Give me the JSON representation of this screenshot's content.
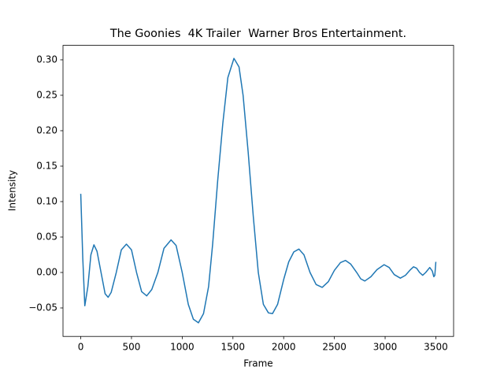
{
  "chart_data": {
    "type": "line",
    "title": "The Goonies  4K Trailer  Warner Bros Entertainment.",
    "x_label": "Frame",
    "y_label": "Intensity",
    "x": [
      0,
      20,
      40,
      70,
      100,
      130,
      160,
      200,
      240,
      270,
      300,
      350,
      400,
      450,
      500,
      550,
      600,
      650,
      700,
      760,
      820,
      890,
      940,
      1000,
      1060,
      1110,
      1160,
      1210,
      1260,
      1300,
      1350,
      1400,
      1450,
      1510,
      1560,
      1600,
      1650,
      1700,
      1750,
      1800,
      1850,
      1890,
      1940,
      2000,
      2050,
      2100,
      2150,
      2200,
      2260,
      2320,
      2380,
      2440,
      2500,
      2560,
      2610,
      2660,
      2720,
      2760,
      2800,
      2860,
      2920,
      2990,
      3040,
      3090,
      3150,
      3200,
      3250,
      3280,
      3310,
      3340,
      3370,
      3400,
      3440,
      3465,
      3480,
      3490,
      3500
    ],
    "series": [
      {
        "name": "Intensity",
        "color": "#1f77b4",
        "values": [
          0.111,
          0.02,
          -0.047,
          -0.02,
          0.025,
          0.039,
          0.03,
          0.0,
          -0.03,
          -0.035,
          -0.028,
          0.0,
          0.032,
          0.04,
          0.032,
          0.0,
          -0.027,
          -0.033,
          -0.024,
          0.0,
          0.034,
          0.046,
          0.038,
          0.0,
          -0.045,
          -0.066,
          -0.071,
          -0.058,
          -0.02,
          0.04,
          0.13,
          0.21,
          0.275,
          0.302,
          0.29,
          0.25,
          0.17,
          0.08,
          0.0,
          -0.045,
          -0.057,
          -0.058,
          -0.045,
          -0.01,
          0.015,
          0.029,
          0.033,
          0.025,
          0.0,
          -0.017,
          -0.021,
          -0.013,
          0.003,
          0.014,
          0.017,
          0.012,
          0.0,
          -0.009,
          -0.012,
          -0.006,
          0.004,
          0.011,
          0.007,
          -0.003,
          -0.008,
          -0.004,
          0.004,
          0.008,
          0.006,
          0.0,
          -0.004,
          0.0,
          0.007,
          0.002,
          -0.006,
          -0.004,
          0.015
        ]
      }
    ],
    "xlim": [
      -175,
      3675
    ],
    "xticks": [
      0,
      500,
      1000,
      1500,
      2000,
      2500,
      3000,
      3500
    ],
    "ylim": [
      -0.0902,
      0.3204
    ],
    "yticks": [
      {
        "value": -0.05,
        "label": "−0.05"
      },
      {
        "value": 0,
        "label": "0.00"
      },
      {
        "value": 0.05,
        "label": "0.05"
      },
      {
        "value": 0.1,
        "label": "0.10"
      },
      {
        "value": 0.15,
        "label": "0.15"
      },
      {
        "value": 0.2,
        "label": "0.20"
      },
      {
        "value": 0.25,
        "label": "0.25"
      },
      {
        "value": 0.3,
        "label": "0.30"
      }
    ],
    "grid": false
  }
}
